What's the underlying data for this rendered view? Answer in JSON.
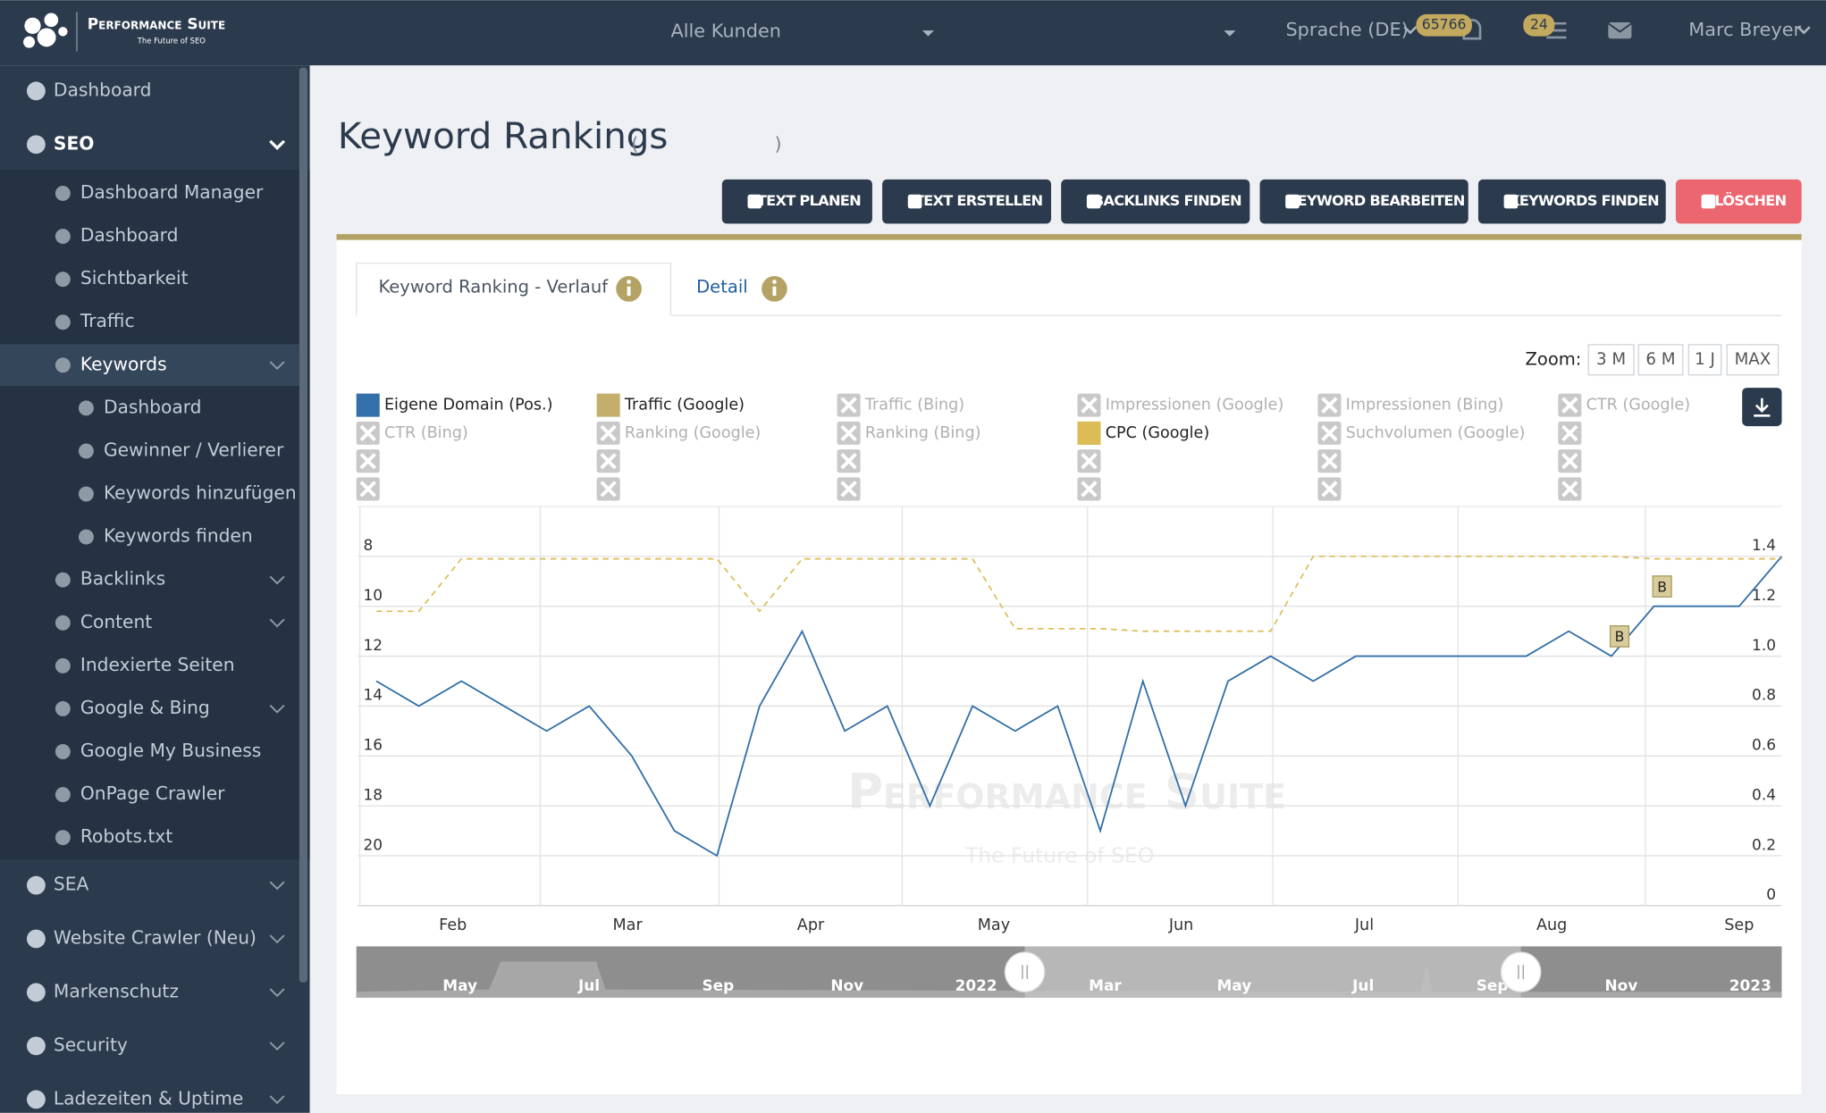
{
  "header": {
    "brand": "Performance Suite",
    "tagline": "The Future of SEO",
    "client_select": "Alle Kunden",
    "language": "Sprache (DE)",
    "notifications": 65766,
    "tasks": 24,
    "user": "Marc Breyer"
  },
  "sidebar": {
    "items": [
      {
        "label": "Dashboard",
        "level": 0
      },
      {
        "label": "SEO",
        "level": 0,
        "submenu": true,
        "expanded": true
      },
      {
        "label": "Dashboard Manager",
        "level": 1
      },
      {
        "label": "Dashboard",
        "level": 1
      },
      {
        "label": "Sichtbarkeit",
        "level": 1
      },
      {
        "label": "Traffic",
        "level": 1
      },
      {
        "label": "Keywords",
        "level": 1,
        "submenu": true,
        "active": true
      },
      {
        "label": "Dashboard",
        "level": 2
      },
      {
        "label": "Gewinner / Verlierer",
        "level": 2
      },
      {
        "label": "Keywords hinzufügen",
        "level": 2
      },
      {
        "label": "Keywords finden",
        "level": 2
      },
      {
        "label": "Backlinks",
        "level": 1,
        "submenu": true
      },
      {
        "label": "Content",
        "level": 1,
        "submenu": true
      },
      {
        "label": "Indexierte Seiten",
        "level": 1
      },
      {
        "label": "Google & Bing",
        "level": 1,
        "submenu": true
      },
      {
        "label": "Google My Business",
        "level": 1
      },
      {
        "label": "OnPage Crawler",
        "level": 1
      },
      {
        "label": "Robots.txt",
        "level": 1
      },
      {
        "label": "SEA",
        "level": 0,
        "submenu": true
      },
      {
        "label": "Website Crawler (Neu)",
        "level": 0,
        "submenu": true
      },
      {
        "label": "Markenschutz",
        "level": 0,
        "submenu": true
      },
      {
        "label": "Security",
        "level": 0,
        "submenu": true
      },
      {
        "label": "Ladezeiten & Uptime",
        "level": 0,
        "submenu": true
      }
    ]
  },
  "page": {
    "title": "Keyword Rankings",
    "title_paren_open": "(",
    "title_paren_close": ")",
    "buttons": [
      {
        "label": "TEXT PLANEN",
        "color": "#2b3a4d"
      },
      {
        "label": "TEXT ERSTELLEN",
        "color": "#2b3a4d"
      },
      {
        "label": "BACKLINKS FINDEN",
        "color": "#2b3a4d"
      },
      {
        "label": "KEYWORD BEARBEITEN",
        "color": "#2b3a4d"
      },
      {
        "label": "KEYWORDS FINDEN",
        "color": "#2b3a4d"
      },
      {
        "label": "LÖSCHEN",
        "color": "#ec6670"
      }
    ],
    "tabs": [
      "Keyword Ranking - Verlauf",
      "Detail"
    ],
    "zoom_label": "Zoom:",
    "zoom_options": [
      "3 M",
      "6 M",
      "1 J",
      "MAX"
    ]
  },
  "chart_data": {
    "type": "line",
    "grid": true,
    "watermark": "Performance Suite",
    "watermark_subtitle": "The Future of SEO",
    "categories": [
      null,
      null,
      null,
      null,
      null,
      null,
      null,
      null,
      null,
      null,
      null,
      null,
      null,
      null,
      null,
      null,
      null,
      null,
      null,
      null,
      null,
      null,
      null,
      null,
      null,
      null,
      null,
      null,
      null,
      null,
      null,
      null,
      null,
      null
    ],
    "xlim": [
      -0.44,
      33
    ],
    "xticks": [
      {
        "value": 1.8,
        "label": "Feb"
      },
      {
        "value": 5.9,
        "label": "Mar"
      },
      {
        "value": 10.2,
        "label": "Apr"
      },
      {
        "value": 14.5,
        "label": "May"
      },
      {
        "value": 18.9,
        "label": "Jun"
      },
      {
        "value": 23.2,
        "label": "Jul"
      },
      {
        "value": 27.6,
        "label": "Aug"
      },
      {
        "value": 32,
        "label": "Sep"
      }
    ],
    "ylim": [
      22,
      6
    ],
    "yticks": [
      8,
      10,
      12,
      14,
      16,
      18,
      20
    ],
    "y2lim": [
      0,
      1.6
    ],
    "y2ticks": [
      0,
      0.2,
      0.4,
      0.6,
      0.8,
      {
        "value": 1,
        "label": "1.0"
      },
      1.2,
      1.4
    ],
    "series": [
      {
        "name": "Eigene Domain (Pos.)",
        "color": "#336fa8",
        "values": [
          13,
          14,
          13,
          14,
          15,
          14,
          16,
          19,
          20,
          14,
          11,
          15,
          14,
          18,
          14,
          15,
          14,
          19,
          13,
          18,
          13,
          12,
          13,
          12,
          12,
          12,
          12,
          12,
          11,
          12,
          10,
          10,
          10,
          8
        ]
      },
      {
        "name": "Traffic (Google)",
        "color": "#c4ae6c"
      },
      {
        "name": "Traffic (Bing)",
        "visible": false
      },
      {
        "name": "Impressionen (Google)",
        "visible": false
      },
      {
        "name": "Impressionen (Bing)",
        "visible": false
      },
      {
        "name": "CTR (Google)",
        "visible": false
      },
      {
        "name": "CTR (Bing)",
        "visible": false
      },
      {
        "name": "Ranking (Google)",
        "visible": false
      },
      {
        "name": "Ranking (Bing)",
        "visible": false
      },
      {
        "name": "CPC (Google)",
        "color": "#dcbc55",
        "axis": "y2",
        "dashed": true,
        "values": [
          1.18,
          1.18,
          1.39,
          1.39,
          1.39,
          1.39,
          1.39,
          1.39,
          1.39,
          1.18,
          1.39,
          1.39,
          1.39,
          1.39,
          1.39,
          1.11,
          1.11,
          1.11,
          1.1,
          1.1,
          1.1,
          1.1,
          1.4,
          1.4,
          1.4,
          1.4,
          1.4,
          1.4,
          1.4,
          1.4,
          1.39,
          1.39,
          1.39,
          1.39
        ]
      },
      {
        "name": "Suchvolumen (Google)",
        "visible": false
      }
    ],
    "annotations": [
      {
        "text": "B",
        "series": 0,
        "index": 29
      },
      {
        "text": "B",
        "series": 0,
        "index": 30
      }
    ]
  },
  "navigator": {
    "labels": [
      "May",
      "Jul",
      "Sep",
      "Nov",
      "2022",
      "Mar",
      "May",
      "Jul",
      "Sep",
      "Nov",
      "2023"
    ]
  }
}
